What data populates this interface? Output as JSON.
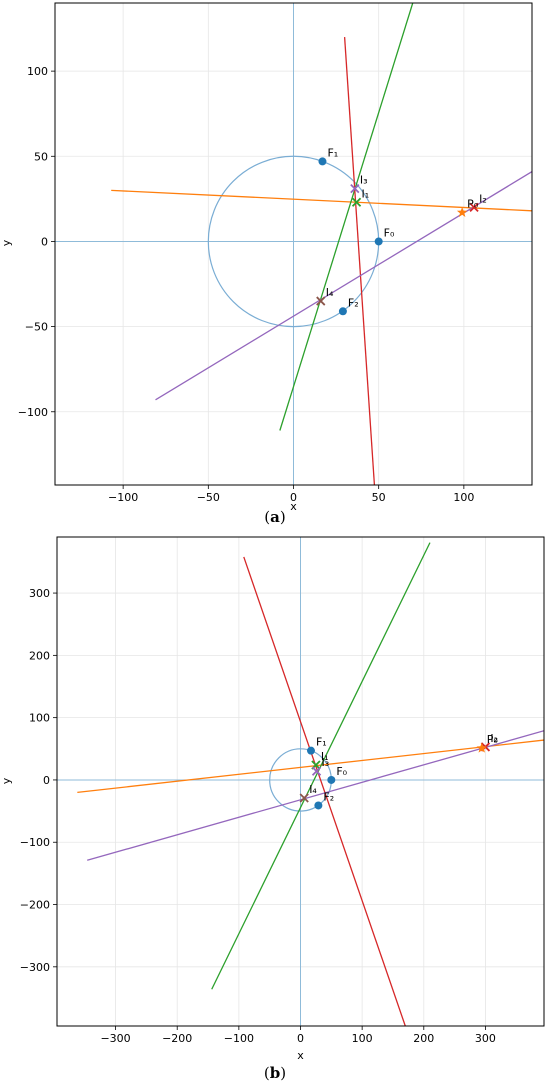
{
  "chart_data": [
    {
      "type": "line",
      "caption_letter": "a",
      "xlabel": "x",
      "ylabel": "y",
      "xlim": [
        -140,
        140
      ],
      "ylim": [
        -143,
        140
      ],
      "x_ticks": [
        -100,
        -50,
        0,
        50,
        100
      ],
      "y_ticks": [
        -100,
        -50,
        0,
        50,
        100
      ],
      "x_tick_labels": [
        "−100",
        "−50",
        "0",
        "50",
        "100"
      ],
      "y_tick_labels": [
        "−100",
        "−50",
        "0",
        "50",
        "100"
      ],
      "grid": true,
      "reference_lines": {
        "x": 0,
        "y": 0,
        "color": "#8fbbd9"
      },
      "circle": {
        "cx": 0,
        "cy": 0,
        "r": 50,
        "color": "#7aadd4"
      },
      "series": [
        {
          "color": "#ff7f0e",
          "points": [
            [
              -107,
              30
            ],
            [
              140,
              18
            ]
          ]
        },
        {
          "color": "#2ca02c",
          "points": [
            [
              -8,
              -111
            ],
            [
              70,
              140
            ]
          ]
        },
        {
          "color": "#d62728",
          "points": [
            [
              30,
              120
            ],
            [
              47.5,
              -143
            ]
          ]
        },
        {
          "color": "#9467bd",
          "points": [
            [
              -81,
              -93
            ],
            [
              140,
              41
            ]
          ]
        }
      ],
      "points": [
        {
          "label": "F₀",
          "x": 50,
          "y": 0,
          "marker": "circle",
          "color": "#1f77b4"
        },
        {
          "label": "F₁",
          "x": 17,
          "y": 47,
          "marker": "circle",
          "color": "#1f77b4"
        },
        {
          "label": "F₂",
          "x": 29,
          "y": -41,
          "marker": "circle",
          "color": "#1f77b4"
        },
        {
          "label": "I₁",
          "x": 37,
          "y": 23,
          "marker": "x",
          "color": "#2ca02c"
        },
        {
          "label": "I₂",
          "x": 106,
          "y": 20,
          "marker": "x",
          "color": "#d62728"
        },
        {
          "label": "I₃",
          "x": 36,
          "y": 31,
          "marker": "x",
          "color": "#9467bd"
        },
        {
          "label": "I₄",
          "x": 16,
          "y": -35,
          "marker": "x",
          "color": "#8c564b"
        },
        {
          "label": "P₀",
          "x": 99,
          "y": 17,
          "marker": "star",
          "color": "#ff7f0e"
        }
      ]
    },
    {
      "type": "line",
      "caption_letter": "b",
      "xlabel": "x",
      "ylabel": "y",
      "xlim": [
        -395,
        395
      ],
      "ylim": [
        -395,
        390
      ],
      "x_ticks": [
        -300,
        -200,
        -100,
        0,
        100,
        200,
        300
      ],
      "y_ticks": [
        -300,
        -200,
        -100,
        0,
        100,
        200,
        300
      ],
      "x_tick_labels": [
        "−300",
        "−200",
        "−100",
        "0",
        "100",
        "200",
        "300"
      ],
      "y_tick_labels": [
        "−300",
        "−200",
        "−100",
        "0",
        "100",
        "200",
        "300"
      ],
      "grid": true,
      "reference_lines": {
        "x": 0,
        "y": 0,
        "color": "#8fbbd9"
      },
      "circle": {
        "cx": 0,
        "cy": 0,
        "r": 50,
        "color": "#7aadd4"
      },
      "series": [
        {
          "color": "#ff7f0e",
          "points": [
            [
              -362,
              -20
            ],
            [
              395,
              64
            ]
          ]
        },
        {
          "color": "#2ca02c",
          "points": [
            [
              -144,
              -336
            ],
            [
              210,
              381
            ]
          ]
        },
        {
          "color": "#d62728",
          "points": [
            [
              -92,
              358
            ],
            [
              170,
              -395
            ]
          ]
        },
        {
          "color": "#9467bd",
          "points": [
            [
              -346,
              -129
            ],
            [
              395,
              79
            ]
          ]
        }
      ],
      "points": [
        {
          "label": "F₀",
          "x": 50,
          "y": 0,
          "marker": "circle",
          "color": "#1f77b4"
        },
        {
          "label": "F₁",
          "x": 17,
          "y": 47,
          "marker": "circle",
          "color": "#1f77b4"
        },
        {
          "label": "F₂",
          "x": 29,
          "y": -41,
          "marker": "circle",
          "color": "#1f77b4"
        },
        {
          "label": "I₁",
          "x": 25,
          "y": 24,
          "marker": "x",
          "color": "#2ca02c"
        },
        {
          "label": "I₂",
          "x": 300,
          "y": 53,
          "marker": "x",
          "color": "#d62728"
        },
        {
          "label": "I₃",
          "x": 26,
          "y": 14,
          "marker": "x",
          "color": "#9467bd"
        },
        {
          "label": "I₄",
          "x": 6,
          "y": -29,
          "marker": "x",
          "color": "#8c564b"
        },
        {
          "label": "P₀",
          "x": 294,
          "y": 51,
          "marker": "star",
          "color": "#ff7f0e"
        }
      ]
    }
  ]
}
